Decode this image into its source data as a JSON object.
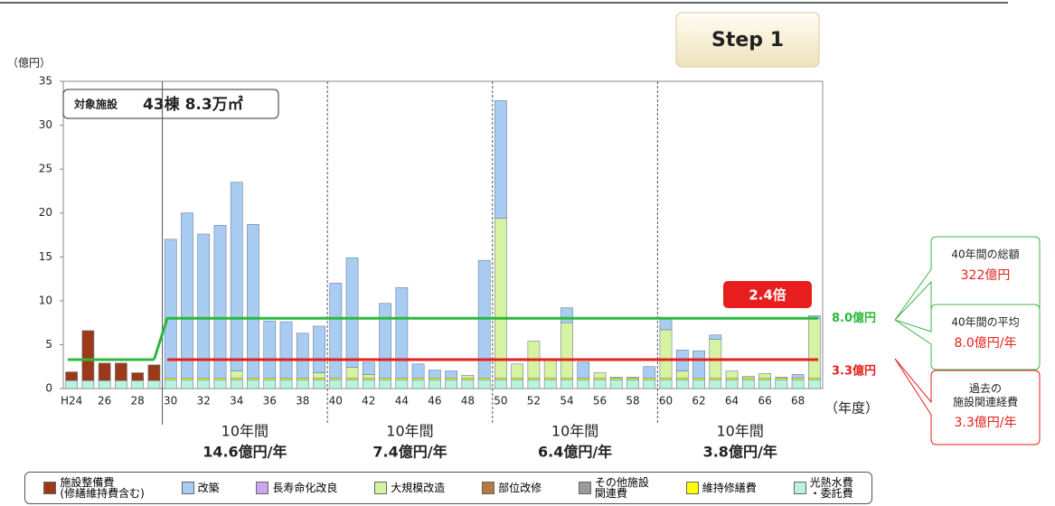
{
  "chart_data": {
    "type": "stacked_bar",
    "y_unit": "（億円）",
    "x_unit": "（年度）",
    "ylim": [
      0,
      35
    ],
    "yticks": [
      0,
      5,
      10,
      15,
      20,
      25,
      30,
      35
    ],
    "categories": [
      "H24",
      null,
      "26",
      null,
      "28",
      null,
      "30",
      null,
      "32",
      null,
      "34",
      null,
      "36",
      null,
      "38",
      null,
      "40",
      null,
      "42",
      null,
      "44",
      null,
      "46",
      null,
      "48",
      null,
      "50",
      null,
      "52",
      null,
      "54",
      null,
      "56",
      null,
      "58",
      null,
      "60",
      null,
      "62",
      null,
      "64",
      null,
      "66",
      null,
      "68",
      null
    ],
    "series": [
      {
        "name": "光熱水費\n・委託費",
        "color": "#b8f3dc",
        "values": [
          0.9,
          0.9,
          0.9,
          0.9,
          0.9,
          0.9,
          1.0,
          1.0,
          1.0,
          1.0,
          1.0,
          1.0,
          1.0,
          1.0,
          1.0,
          1.0,
          1.0,
          1.0,
          1.0,
          1.0,
          1.0,
          1.0,
          1.0,
          1.0,
          1.0,
          1.0,
          1.0,
          1.0,
          1.0,
          1.0,
          1.0,
          1.0,
          1.0,
          1.0,
          1.0,
          1.0,
          1.0,
          1.0,
          1.0,
          1.0,
          1.0,
          1.0,
          1.0,
          1.0,
          1.0,
          1.0
        ]
      },
      {
        "name": "維持修繕費",
        "color": "#ffff00",
        "values": [
          0,
          0,
          0,
          0,
          0,
          0,
          0.2,
          0.2,
          0.2,
          0.2,
          0.2,
          0.2,
          0.2,
          0.2,
          0.2,
          0.2,
          0.2,
          0.2,
          0.2,
          0.2,
          0.2,
          0.2,
          0.2,
          0.2,
          0.2,
          0.2,
          0.2,
          0.2,
          0.2,
          0.2,
          0.2,
          0.2,
          0.2,
          0.2,
          0.2,
          0.2,
          0.2,
          0.2,
          0.2,
          0.2,
          0.2,
          0.2,
          0.2,
          0.2,
          0.2,
          0.2
        ]
      },
      {
        "name": "大規模改造",
        "color": "#d6f3a3",
        "values": [
          0,
          0,
          0,
          0,
          0,
          0,
          0,
          0,
          0,
          0,
          0.8,
          0,
          0,
          0,
          0,
          0.6,
          0,
          1.2,
          0.4,
          0,
          0,
          0,
          0,
          0,
          0.3,
          0,
          18.2,
          1.6,
          4.2,
          2.0,
          6.3,
          0,
          0.6,
          0.1,
          0.1,
          0,
          5.5,
          0.8,
          0,
          4.4,
          0.8,
          0.2,
          0.5,
          0.1,
          0,
          6.8
        ]
      },
      {
        "name": "改築",
        "color": "#a9ccf2",
        "values": [
          0,
          0,
          0,
          0,
          0,
          0,
          15.8,
          18.8,
          16.4,
          17.4,
          21.5,
          17.5,
          6.5,
          6.4,
          5.1,
          5.3,
          10.8,
          12.5,
          1.4,
          8.5,
          10.3,
          1.6,
          0.9,
          0.8,
          0,
          13.4,
          13.4,
          0,
          0,
          0,
          1.7,
          1.8,
          0,
          0,
          0,
          1.3,
          1.4,
          2.4,
          3.1,
          0.5,
          0,
          0,
          0,
          0,
          0.4,
          0.3
        ]
      },
      {
        "name": "長寿命化改良",
        "color": "#cfa6ee",
        "values": [
          0,
          0,
          0,
          0,
          0,
          0,
          0,
          0,
          0,
          0,
          0,
          0,
          0,
          0,
          0,
          0,
          0,
          0,
          0,
          0,
          0,
          0,
          0,
          0,
          0,
          0,
          0,
          0,
          0,
          0,
          0,
          0,
          0,
          0,
          0,
          0,
          0,
          0,
          0,
          0,
          0,
          0,
          0,
          0,
          0,
          0
        ]
      },
      {
        "name": "部位改修",
        "color": "#b47b45",
        "values": [
          0,
          0,
          0,
          0,
          0,
          0,
          0,
          0,
          0,
          0,
          0,
          0,
          0,
          0,
          0,
          0,
          0,
          0,
          0,
          0,
          0,
          0,
          0,
          0,
          0,
          0,
          0,
          0,
          0,
          0,
          0,
          0,
          0,
          0,
          0,
          0,
          0,
          0,
          0,
          0,
          0,
          0,
          0,
          0,
          0,
          0
        ]
      },
      {
        "name": "その他施設\n関連費",
        "color": "#9a9a9a",
        "values": [
          0,
          0,
          0,
          0,
          0,
          0,
          0,
          0,
          0,
          0,
          0,
          0,
          0,
          0,
          0,
          0,
          0,
          0,
          0,
          0,
          0,
          0,
          0,
          0,
          0,
          0,
          0,
          0,
          0,
          0,
          0,
          0,
          0,
          0,
          0,
          0,
          0,
          0,
          0,
          0,
          0,
          0,
          0,
          0,
          0,
          0
        ]
      },
      {
        "name": "施設整備費\n(修繕維持費含む)",
        "color": "#9b3a18",
        "values": [
          1.0,
          5.7,
          2.0,
          2.0,
          0.9,
          1.8,
          0,
          0,
          0,
          0,
          0,
          0,
          0,
          0,
          0,
          0,
          0,
          0,
          0,
          0,
          0,
          0,
          0,
          0,
          0,
          0,
          0,
          0,
          0,
          0,
          0,
          0,
          0,
          0,
          0,
          0,
          0,
          0,
          0,
          0,
          0,
          0,
          0,
          0,
          0,
          0
        ]
      }
    ],
    "legend_order": [
      7,
      3,
      4,
      2,
      5,
      6,
      1,
      0
    ],
    "average_lines": [
      {
        "label": "8.0億円",
        "color": "#2db83d",
        "value": 8.0,
        "past_value": 3.3
      },
      {
        "label": "3.3億円",
        "color": "#e3201b",
        "value": 3.3
      }
    ],
    "facility_label": "対象施設",
    "facility_value": "43棟 8.3万㎡",
    "ratio_badge": "2.4倍",
    "periods": [
      {
        "label": "10年間",
        "average": "14.6億円/年"
      },
      {
        "label": "10年間",
        "average": "7.4億円/年"
      },
      {
        "label": "10年間",
        "average": "6.4億円/年"
      },
      {
        "label": "10年間",
        "average": "3.8億円/年"
      }
    ],
    "callouts": [
      {
        "title": "40年間の総額",
        "value": "322億円"
      },
      {
        "title": "40年間の平均",
        "value": "8.0億円/年"
      },
      {
        "title": "過去の\n施設関連経費",
        "value": "3.3億円/年"
      }
    ],
    "step_label": "Step 1"
  }
}
